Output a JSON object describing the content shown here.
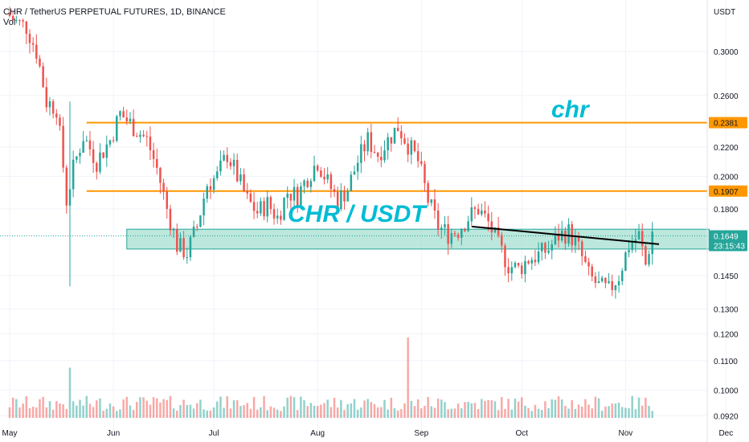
{
  "header": {
    "symbol_line": "CHR / TetherUS PERPETUAL FUTURES, 1D, BINANCE",
    "volume_label": "Vol"
  },
  "axis": {
    "currency": "USDT"
  },
  "annotations": {
    "chr_label": "chr",
    "pair_label": "CHR / USDT"
  },
  "price_tags": {
    "resistance_upper": "0.2381",
    "resistance_lower": "0.1907",
    "last_price": "0.1649",
    "countdown": "23:15:43"
  },
  "colors": {
    "up": "#26a69a",
    "down": "#ef5350",
    "orange_line": "#ff9800",
    "zone_fill": "#a5dfd0",
    "zone_border": "#26a69a",
    "annotation_text": "#00bcd4",
    "trendline": "#000000",
    "last_price_tag": "#26a69a"
  },
  "chart_data": {
    "type": "candlestick",
    "title": "CHR / TetherUS PERPETUAL FUTURES, 1D, BINANCE",
    "y_scale": "log",
    "ylim": [
      0.089,
      0.34
    ],
    "y_ticks": [
      "0.3000",
      "0.2600",
      "0.2200",
      "0.2000",
      "0.1800",
      "0.1450",
      "0.1300",
      "0.1200",
      "0.1100",
      "0.1000",
      "0.0920"
    ],
    "x_tick_labels": [
      "May",
      "Jun",
      "Jul",
      "Aug",
      "Sep",
      "Oct",
      "Nov",
      "Dec"
    ],
    "x_range": [
      "2021-05-01",
      "2021-12-05"
    ],
    "horizontal_levels": [
      0.2381,
      0.1907
    ],
    "support_zone": [
      0.158,
      0.1685
    ],
    "trendline": [
      [
        "2021-09-16",
        0.17
      ],
      [
        "2021-11-11",
        0.1605
      ]
    ],
    "last_price": 0.1649,
    "price_path": [
      [
        "2021-05-01",
        0.34
      ],
      [
        "2021-05-04",
        0.33
      ],
      [
        "2021-05-07",
        0.325
      ],
      [
        "2021-05-10",
        0.3
      ],
      [
        "2021-05-13",
        0.255
      ],
      [
        "2021-05-16",
        0.25
      ],
      [
        "2021-05-19",
        0.185
      ],
      [
        "2021-05-21",
        0.205
      ],
      [
        "2021-05-24",
        0.228
      ],
      [
        "2021-05-28",
        0.21
      ],
      [
        "2021-06-01",
        0.225
      ],
      [
        "2021-06-04",
        0.245
      ],
      [
        "2021-06-08",
        0.235
      ],
      [
        "2021-06-12",
        0.225
      ],
      [
        "2021-06-15",
        0.205
      ],
      [
        "2021-06-18",
        0.18
      ],
      [
        "2021-06-21",
        0.16
      ],
      [
        "2021-06-24",
        0.156
      ],
      [
        "2021-06-27",
        0.17
      ],
      [
        "2021-06-30",
        0.195
      ],
      [
        "2021-07-03",
        0.2
      ],
      [
        "2021-07-06",
        0.215
      ],
      [
        "2021-07-09",
        0.2
      ],
      [
        "2021-07-12",
        0.185
      ],
      [
        "2021-07-15",
        0.178
      ],
      [
        "2021-07-18",
        0.183
      ],
      [
        "2021-07-21",
        0.175
      ],
      [
        "2021-07-24",
        0.19
      ],
      [
        "2021-07-27",
        0.188
      ],
      [
        "2021-07-30",
        0.2
      ],
      [
        "2021-08-02",
        0.21
      ],
      [
        "2021-08-05",
        0.196
      ],
      [
        "2021-08-08",
        0.185
      ],
      [
        "2021-08-11",
        0.192
      ],
      [
        "2021-08-14",
        0.21
      ],
      [
        "2021-08-17",
        0.225
      ],
      [
        "2021-08-20",
        0.215
      ],
      [
        "2021-08-23",
        0.225
      ],
      [
        "2021-08-26",
        0.235
      ],
      [
        "2021-08-29",
        0.222
      ],
      [
        "2021-09-01",
        0.21
      ],
      [
        "2021-09-04",
        0.185
      ],
      [
        "2021-09-07",
        0.17
      ],
      [
        "2021-09-10",
        0.166
      ],
      [
        "2021-09-13",
        0.168
      ],
      [
        "2021-09-16",
        0.175
      ],
      [
        "2021-09-19",
        0.18
      ],
      [
        "2021-09-22",
        0.172
      ],
      [
        "2021-09-25",
        0.16
      ],
      [
        "2021-09-28",
        0.15
      ],
      [
        "2021-10-01",
        0.148
      ],
      [
        "2021-10-04",
        0.153
      ],
      [
        "2021-10-07",
        0.155
      ],
      [
        "2021-10-10",
        0.158
      ],
      [
        "2021-10-13",
        0.165
      ],
      [
        "2021-10-16",
        0.167
      ],
      [
        "2021-10-19",
        0.158
      ],
      [
        "2021-10-22",
        0.145
      ],
      [
        "2021-10-25",
        0.14
      ],
      [
        "2021-10-28",
        0.138
      ],
      [
        "2021-10-31",
        0.145
      ],
      [
        "2021-11-03",
        0.16
      ],
      [
        "2021-11-06",
        0.165
      ],
      [
        "2021-11-08",
        0.15
      ],
      [
        "2021-11-10",
        0.167
      ]
    ]
  }
}
